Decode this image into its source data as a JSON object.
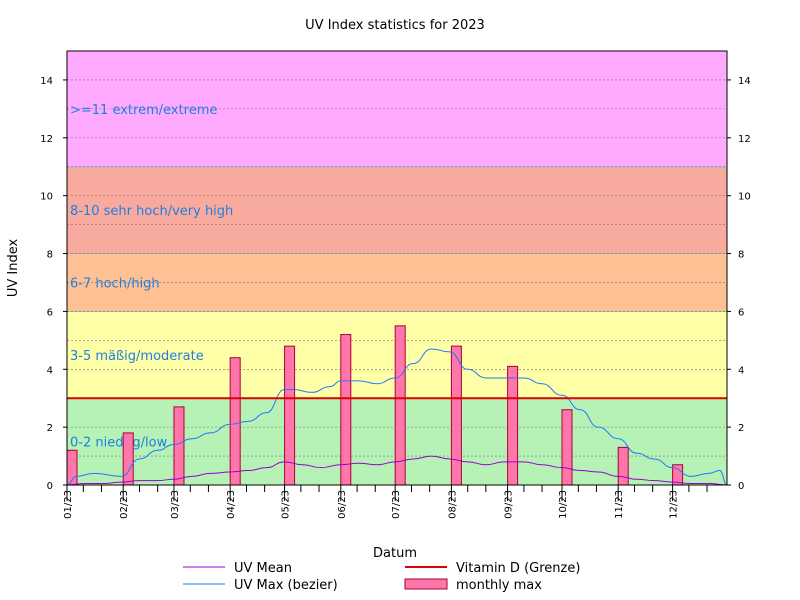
{
  "chart_data": {
    "type": "bar",
    "title": "UV Index statistics for 2023",
    "xlabel": "Datum",
    "ylabel": "UV Index",
    "ylim": [
      0,
      15
    ],
    "xlim": [
      "2023-01-01",
      "2023-12-31"
    ],
    "yticks": [
      0,
      2,
      4,
      6,
      8,
      10,
      12,
      14
    ],
    "grid": true,
    "legend_position": "bottom",
    "x_tick_labels": [
      "01/23",
      "02/23",
      "03/23",
      "04/23",
      "05/23",
      "06/23",
      "07/23",
      "08/23",
      "09/23",
      "10/23",
      "11/23",
      "12/23"
    ],
    "bands": [
      {
        "label": "0-2 niedrig/low",
        "from": 0,
        "to": 3,
        "color": "#b6f2b6"
      },
      {
        "label": "3-5 mäßig/moderate",
        "from": 3,
        "to": 6,
        "color": "#ffffa8"
      },
      {
        "label": "6-7 hoch/high",
        "from": 6,
        "to": 8,
        "color": "#ffc094"
      },
      {
        "label": "8-10 sehr hoch/very high",
        "from": 8,
        "to": 11,
        "color": "#f9aa9e"
      },
      {
        "label": ">=11 extrem/extreme",
        "from": 11,
        "to": 15,
        "color": "#ffaaff"
      }
    ],
    "reference_line": {
      "name": "Vitamin D (Grenze)",
      "value": 3,
      "color": "#dd0000"
    },
    "series": [
      {
        "name": "monthly max",
        "type": "bar",
        "color": "#ff77aa",
        "x": [
          "2023-01-01",
          "2023-02-01",
          "2023-03-01",
          "2023-04-01",
          "2023-05-01",
          "2023-06-01",
          "2023-07-01",
          "2023-08-01",
          "2023-09-01",
          "2023-10-01",
          "2023-11-01",
          "2023-12-01"
        ],
        "values": [
          1.2,
          1.8,
          2.7,
          4.4,
          4.8,
          5.2,
          5.5,
          4.8,
          4.1,
          2.6,
          1.3,
          0.7
        ]
      },
      {
        "name": "UV Max (bezier)",
        "type": "line",
        "color": "#2277ff",
        "x": [
          "2023-01-01",
          "2023-01-06",
          "2023-01-16",
          "2023-01-31",
          "2023-02-10",
          "2023-02-20",
          "2023-03-01",
          "2023-03-11",
          "2023-03-21",
          "2023-04-01",
          "2023-04-11",
          "2023-04-21",
          "2023-05-01",
          "2023-05-06",
          "2023-05-16",
          "2023-05-26",
          "2023-06-01",
          "2023-06-11",
          "2023-06-21",
          "2023-07-01",
          "2023-07-11",
          "2023-07-21",
          "2023-07-31",
          "2023-08-10",
          "2023-08-20",
          "2023-08-30",
          "2023-09-10",
          "2023-09-20",
          "2023-10-01",
          "2023-10-11",
          "2023-10-21",
          "2023-11-01",
          "2023-11-11",
          "2023-11-21",
          "2023-12-01",
          "2023-12-11",
          "2023-12-21",
          "2023-12-27",
          "2023-12-31"
        ],
        "values": [
          0.0,
          0.3,
          0.4,
          0.3,
          0.9,
          1.2,
          1.4,
          1.6,
          1.8,
          2.1,
          2.2,
          2.5,
          3.3,
          3.3,
          3.2,
          3.4,
          3.6,
          3.6,
          3.5,
          3.7,
          4.2,
          4.7,
          4.6,
          4.0,
          3.7,
          3.7,
          3.7,
          3.5,
          3.1,
          2.6,
          2.0,
          1.6,
          1.1,
          0.9,
          0.6,
          0.3,
          0.4,
          0.5,
          0.0
        ]
      },
      {
        "name": "UV Mean",
        "type": "line",
        "color": "#9900cc",
        "x": [
          "2023-01-01",
          "2023-01-11",
          "2023-01-21",
          "2023-01-31",
          "2023-02-10",
          "2023-02-20",
          "2023-03-01",
          "2023-03-11",
          "2023-03-21",
          "2023-04-01",
          "2023-04-11",
          "2023-04-21",
          "2023-05-01",
          "2023-05-11",
          "2023-05-21",
          "2023-06-01",
          "2023-06-11",
          "2023-06-21",
          "2023-07-01",
          "2023-07-11",
          "2023-07-21",
          "2023-07-31",
          "2023-08-10",
          "2023-08-20",
          "2023-08-30",
          "2023-09-10",
          "2023-09-20",
          "2023-10-01",
          "2023-10-11",
          "2023-10-21",
          "2023-11-01",
          "2023-11-11",
          "2023-11-21",
          "2023-12-01",
          "2023-12-11",
          "2023-12-21",
          "2023-12-31"
        ],
        "values": [
          0.0,
          0.05,
          0.05,
          0.1,
          0.15,
          0.15,
          0.2,
          0.3,
          0.4,
          0.45,
          0.5,
          0.6,
          0.8,
          0.7,
          0.6,
          0.7,
          0.75,
          0.7,
          0.8,
          0.9,
          1.0,
          0.9,
          0.8,
          0.7,
          0.8,
          0.8,
          0.7,
          0.6,
          0.5,
          0.45,
          0.3,
          0.2,
          0.15,
          0.1,
          0.05,
          0.05,
          0.0
        ]
      }
    ],
    "legend": [
      {
        "name": "UV Mean",
        "kind": "line",
        "color": "#9900cc"
      },
      {
        "name": "Vitamin D (Grenze)",
        "kind": "line",
        "color": "#dd0000"
      },
      {
        "name": "UV Max (bezier)",
        "kind": "line",
        "color": "#2277ff"
      },
      {
        "name": "monthly max",
        "kind": "box",
        "color": "#ff77aa"
      }
    ]
  }
}
